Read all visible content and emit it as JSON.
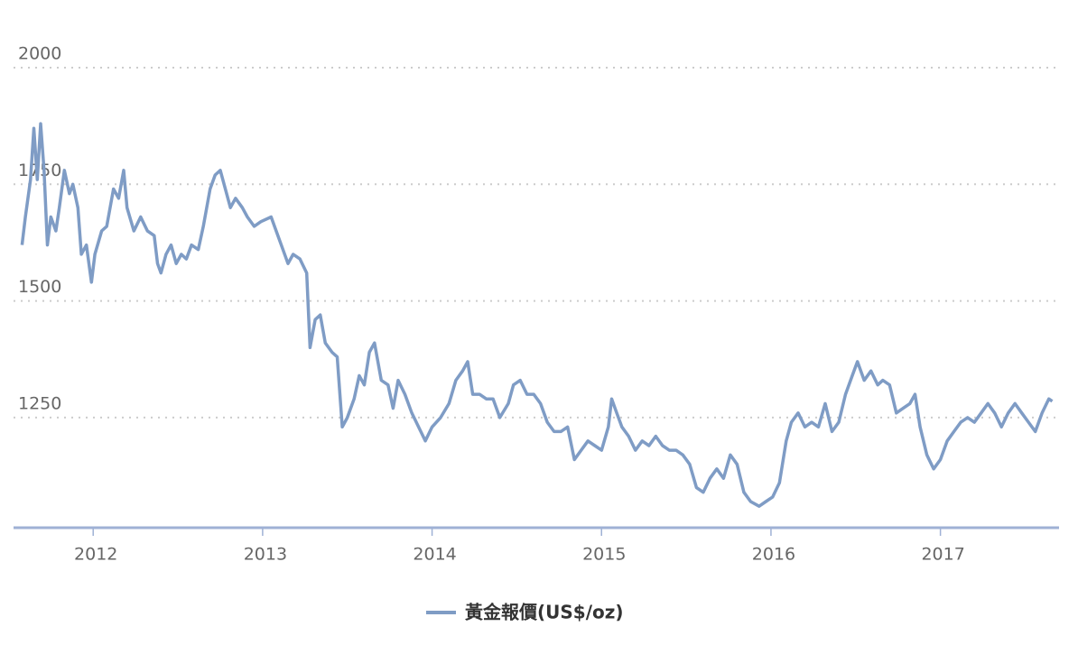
{
  "chart_data": {
    "type": "line",
    "xlim": [
      2011.53,
      2017.7
    ],
    "xticks": [
      2012,
      2013,
      2014,
      2015,
      2016,
      2017
    ],
    "ylim": [
      1014,
      2000
    ],
    "yticks": [
      1250,
      1500,
      1750,
      2000
    ],
    "grid": true,
    "series": [
      {
        "name": "黃金報價(US$/oz)",
        "color": "#7f9cc5",
        "x": [
          2011.58,
          2011.6,
          2011.63,
          2011.65,
          2011.67,
          2011.69,
          2011.71,
          2011.73,
          2011.75,
          2011.78,
          2011.8,
          2011.83,
          2011.86,
          2011.88,
          2011.91,
          2011.93,
          2011.96,
          2011.99,
          2012.01,
          2012.05,
          2012.08,
          2012.12,
          2012.15,
          2012.18,
          2012.2,
          2012.24,
          2012.28,
          2012.32,
          2012.36,
          2012.38,
          2012.4,
          2012.43,
          2012.46,
          2012.49,
          2012.52,
          2012.55,
          2012.58,
          2012.62,
          2012.65,
          2012.69,
          2012.72,
          2012.75,
          2012.78,
          2012.81,
          2012.84,
          2012.88,
          2012.91,
          2012.95,
          2012.99,
          2013.05,
          2013.08,
          2013.12,
          2013.15,
          2013.18,
          2013.22,
          2013.26,
          2013.28,
          2013.31,
          2013.34,
          2013.37,
          2013.41,
          2013.44,
          2013.47,
          2013.5,
          2013.54,
          2013.57,
          2013.6,
          2013.63,
          2013.66,
          2013.7,
          2013.74,
          2013.77,
          2013.8,
          2013.84,
          2013.88,
          2013.92,
          2013.96,
          2014.0,
          2014.05,
          2014.1,
          2014.14,
          2014.18,
          2014.21,
          2014.24,
          2014.28,
          2014.32,
          2014.36,
          2014.4,
          2014.45,
          2014.48,
          2014.52,
          2014.56,
          2014.6,
          2014.64,
          2014.68,
          2014.72,
          2014.76,
          2014.8,
          2014.84,
          2014.88,
          2014.92,
          2014.96,
          2015.0,
          2015.04,
          2015.06,
          2015.09,
          2015.12,
          2015.16,
          2015.2,
          2015.24,
          2015.28,
          2015.32,
          2015.36,
          2015.4,
          2015.44,
          2015.48,
          2015.52,
          2015.56,
          2015.6,
          2015.64,
          2015.68,
          2015.72,
          2015.76,
          2015.8,
          2015.84,
          2015.88,
          2015.93,
          2015.97,
          2016.01,
          2016.05,
          2016.09,
          2016.12,
          2016.16,
          2016.2,
          2016.24,
          2016.28,
          2016.32,
          2016.36,
          2016.4,
          2016.44,
          2016.48,
          2016.51,
          2016.55,
          2016.59,
          2016.63,
          2016.66,
          2016.7,
          2016.74,
          2016.78,
          2016.82,
          2016.85,
          2016.88,
          2016.92,
          2016.96,
          2017.0,
          2017.04,
          2017.08,
          2017.12,
          2017.16,
          2017.2,
          2017.24,
          2017.28,
          2017.32,
          2017.36,
          2017.4,
          2017.44,
          2017.48,
          2017.52,
          2017.56,
          2017.6,
          2017.64,
          2017.66
        ],
        "values": [
          1620,
          1680,
          1760,
          1870,
          1760,
          1880,
          1780,
          1620,
          1680,
          1650,
          1700,
          1780,
          1730,
          1750,
          1700,
          1600,
          1620,
          1540,
          1600,
          1650,
          1660,
          1740,
          1720,
          1780,
          1700,
          1650,
          1680,
          1650,
          1640,
          1580,
          1560,
          1600,
          1620,
          1580,
          1600,
          1590,
          1620,
          1610,
          1660,
          1740,
          1770,
          1780,
          1740,
          1700,
          1720,
          1700,
          1680,
          1660,
          1670,
          1680,
          1650,
          1610,
          1580,
          1600,
          1590,
          1560,
          1400,
          1460,
          1470,
          1410,
          1390,
          1380,
          1230,
          1250,
          1290,
          1340,
          1320,
          1390,
          1410,
          1330,
          1320,
          1270,
          1330,
          1300,
          1260,
          1230,
          1200,
          1230,
          1250,
          1280,
          1330,
          1350,
          1370,
          1300,
          1300,
          1290,
          1290,
          1250,
          1280,
          1320,
          1330,
          1300,
          1300,
          1280,
          1240,
          1220,
          1220,
          1230,
          1160,
          1180,
          1200,
          1190,
          1180,
          1230,
          1290,
          1260,
          1230,
          1210,
          1180,
          1200,
          1190,
          1210,
          1190,
          1180,
          1180,
          1170,
          1150,
          1100,
          1090,
          1120,
          1140,
          1120,
          1170,
          1150,
          1090,
          1070,
          1060,
          1070,
          1080,
          1110,
          1200,
          1240,
          1260,
          1230,
          1240,
          1230,
          1280,
          1220,
          1240,
          1300,
          1340,
          1370,
          1330,
          1350,
          1320,
          1330,
          1320,
          1260,
          1270,
          1280,
          1300,
          1230,
          1170,
          1140,
          1160,
          1200,
          1220,
          1240,
          1250,
          1240,
          1260,
          1280,
          1260,
          1230,
          1260,
          1280,
          1260,
          1240,
          1220,
          1260,
          1290,
          1285
        ]
      }
    ]
  }
}
